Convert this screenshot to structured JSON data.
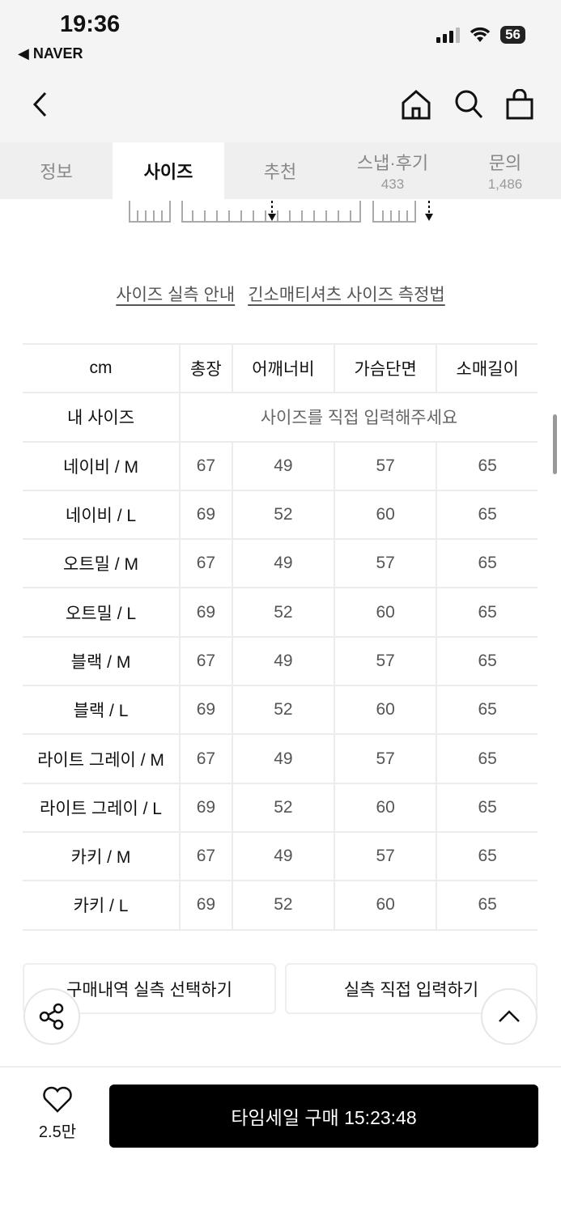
{
  "status": {
    "time": "19:36",
    "back_app": "◀ NAVER",
    "battery": "56"
  },
  "tabs": [
    {
      "label": "정보"
    },
    {
      "label": "사이즈",
      "active": true
    },
    {
      "label": "추천"
    },
    {
      "label": "스냅·후기",
      "count": "433"
    },
    {
      "label": "문의",
      "count": "1,486"
    }
  ],
  "links": {
    "guide": "사이즈 실측 안내",
    "method": "긴소매티셔츠 사이즈 측정법"
  },
  "table": {
    "unit": "cm",
    "headers": [
      "총장",
      "어깨너비",
      "가슴단면",
      "소매길이"
    ],
    "my_size": {
      "label": "내 사이즈",
      "hint": "사이즈를 직접 입력해주세요"
    },
    "rows": [
      {
        "name": "네이비 / M",
        "values": [
          "67",
          "49",
          "57",
          "65"
        ]
      },
      {
        "name": "네이비 / L",
        "values": [
          "69",
          "52",
          "60",
          "65"
        ]
      },
      {
        "name": "오트밀 / M",
        "values": [
          "67",
          "49",
          "57",
          "65"
        ]
      },
      {
        "name": "오트밀 / L",
        "values": [
          "69",
          "52",
          "60",
          "65"
        ]
      },
      {
        "name": "블랙 / M",
        "values": [
          "67",
          "49",
          "57",
          "65"
        ]
      },
      {
        "name": "블랙 / L",
        "values": [
          "69",
          "52",
          "60",
          "65"
        ]
      },
      {
        "name": "라이트 그레이 / M",
        "values": [
          "67",
          "49",
          "57",
          "65"
        ]
      },
      {
        "name": "라이트 그레이 / L",
        "values": [
          "69",
          "52",
          "60",
          "65"
        ]
      },
      {
        "name": "카키 / M",
        "values": [
          "67",
          "49",
          "57",
          "65"
        ]
      },
      {
        "name": "카키 / L",
        "values": [
          "69",
          "52",
          "60",
          "65"
        ]
      }
    ]
  },
  "buttons": {
    "purchase_history": "구매내역 실측 선택하기",
    "direct_input": "실측 직접 입력하기"
  },
  "bottom": {
    "likes": "2.5만",
    "buy": "타임세일 구매 15:23:48"
  }
}
